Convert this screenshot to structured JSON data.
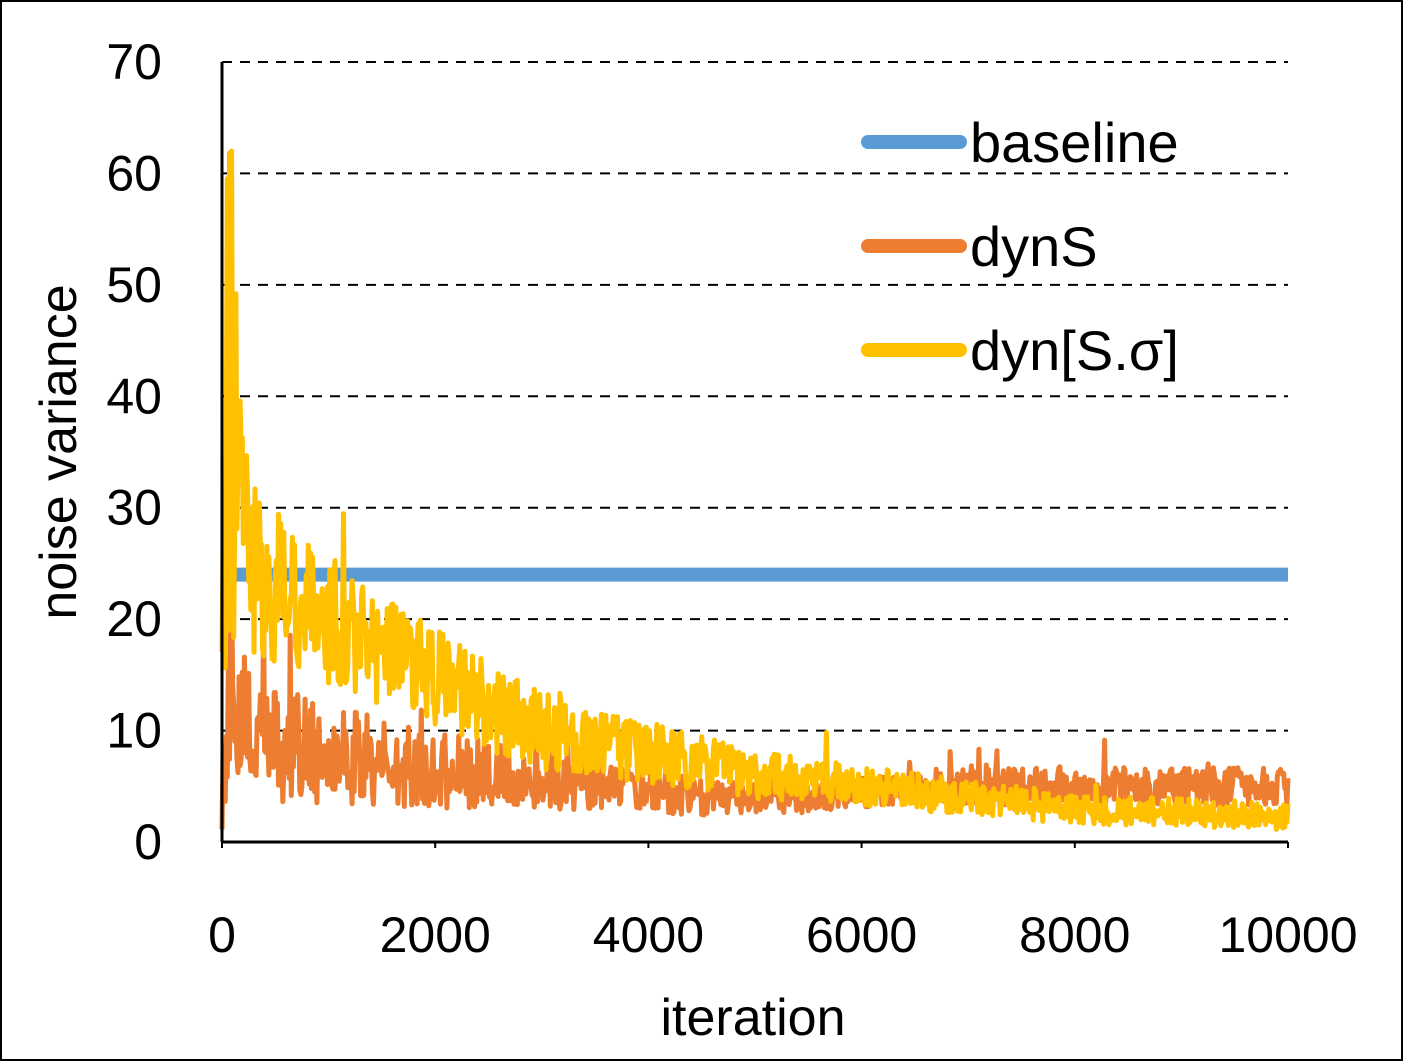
{
  "chart_data": {
    "type": "line",
    "title": "",
    "xlabel": "iteration",
    "ylabel": "noise variance",
    "xlim": [
      0,
      10000
    ],
    "ylim": [
      0,
      70
    ],
    "xticks": [
      0,
      2000,
      4000,
      6000,
      8000,
      10000
    ],
    "xtick_labels": [
      "0",
      "2000",
      "4000",
      "6000",
      "8000",
      "10000"
    ],
    "yticks": [
      0,
      10,
      20,
      30,
      40,
      50,
      60,
      70
    ],
    "ytick_labels": [
      "0",
      "10",
      "20",
      "30",
      "40",
      "50",
      "60",
      "70"
    ],
    "grid": "horizontal dashed",
    "legend_position": "top-right",
    "series": [
      {
        "name": "baseline",
        "color": "#5B9BD5",
        "x": [
          0,
          10000
        ],
        "values": [
          24,
          24
        ]
      },
      {
        "name": "dynS",
        "color": "#ED7D31",
        "x": [
          0,
          50,
          100,
          150,
          200,
          300,
          500,
          700,
          1000,
          1500,
          2000,
          2500,
          3000,
          3500,
          4000,
          4500,
          5000,
          5500,
          6000,
          6500,
          7000,
          7500,
          8000,
          8500,
          9000,
          9500,
          10000
        ],
        "values": [
          5,
          10,
          18,
          14,
          11,
          9,
          9,
          8.5,
          8,
          7,
          6.5,
          6,
          5.5,
          5,
          4.5,
          4,
          4,
          4,
          4.5,
          5,
          5,
          5,
          5,
          5,
          5,
          5,
          5
        ],
        "noise": [
          4,
          8,
          10,
          8,
          7,
          6,
          5.5,
          5,
          4.5,
          4,
          3.5,
          3,
          2.5,
          2.2,
          2,
          1.6,
          1.4,
          1.4,
          1.4,
          1.5,
          1.6,
          1.7,
          1.8,
          1.8,
          1.8,
          1.8,
          1.8
        ]
      },
      {
        "name": "dyn[S.σ]",
        "color": "#FFC000",
        "x": [
          0,
          50,
          100,
          150,
          200,
          300,
          500,
          700,
          1000,
          1500,
          2000,
          2500,
          3000,
          3500,
          4000,
          4500,
          5000,
          5500,
          6000,
          6500,
          7000,
          7500,
          8000,
          8500,
          9000,
          9500,
          10000
        ],
        "values": [
          20,
          30,
          40,
          32,
          28,
          25,
          23,
          22,
          20,
          17,
          15,
          12,
          10,
          9,
          8,
          7,
          6,
          5.5,
          5,
          4.5,
          4,
          3.5,
          3,
          2.8,
          2.6,
          2.4,
          2.2
        ],
        "noise": [
          8,
          15,
          22,
          14,
          10,
          8,
          7,
          6.5,
          6,
          5,
          4.5,
          4,
          3.5,
          3,
          2.8,
          2.5,
          2.2,
          2,
          1.8,
          1.7,
          1.6,
          1.5,
          1.4,
          1.3,
          1.3,
          1.3,
          1.3
        ]
      }
    ]
  }
}
